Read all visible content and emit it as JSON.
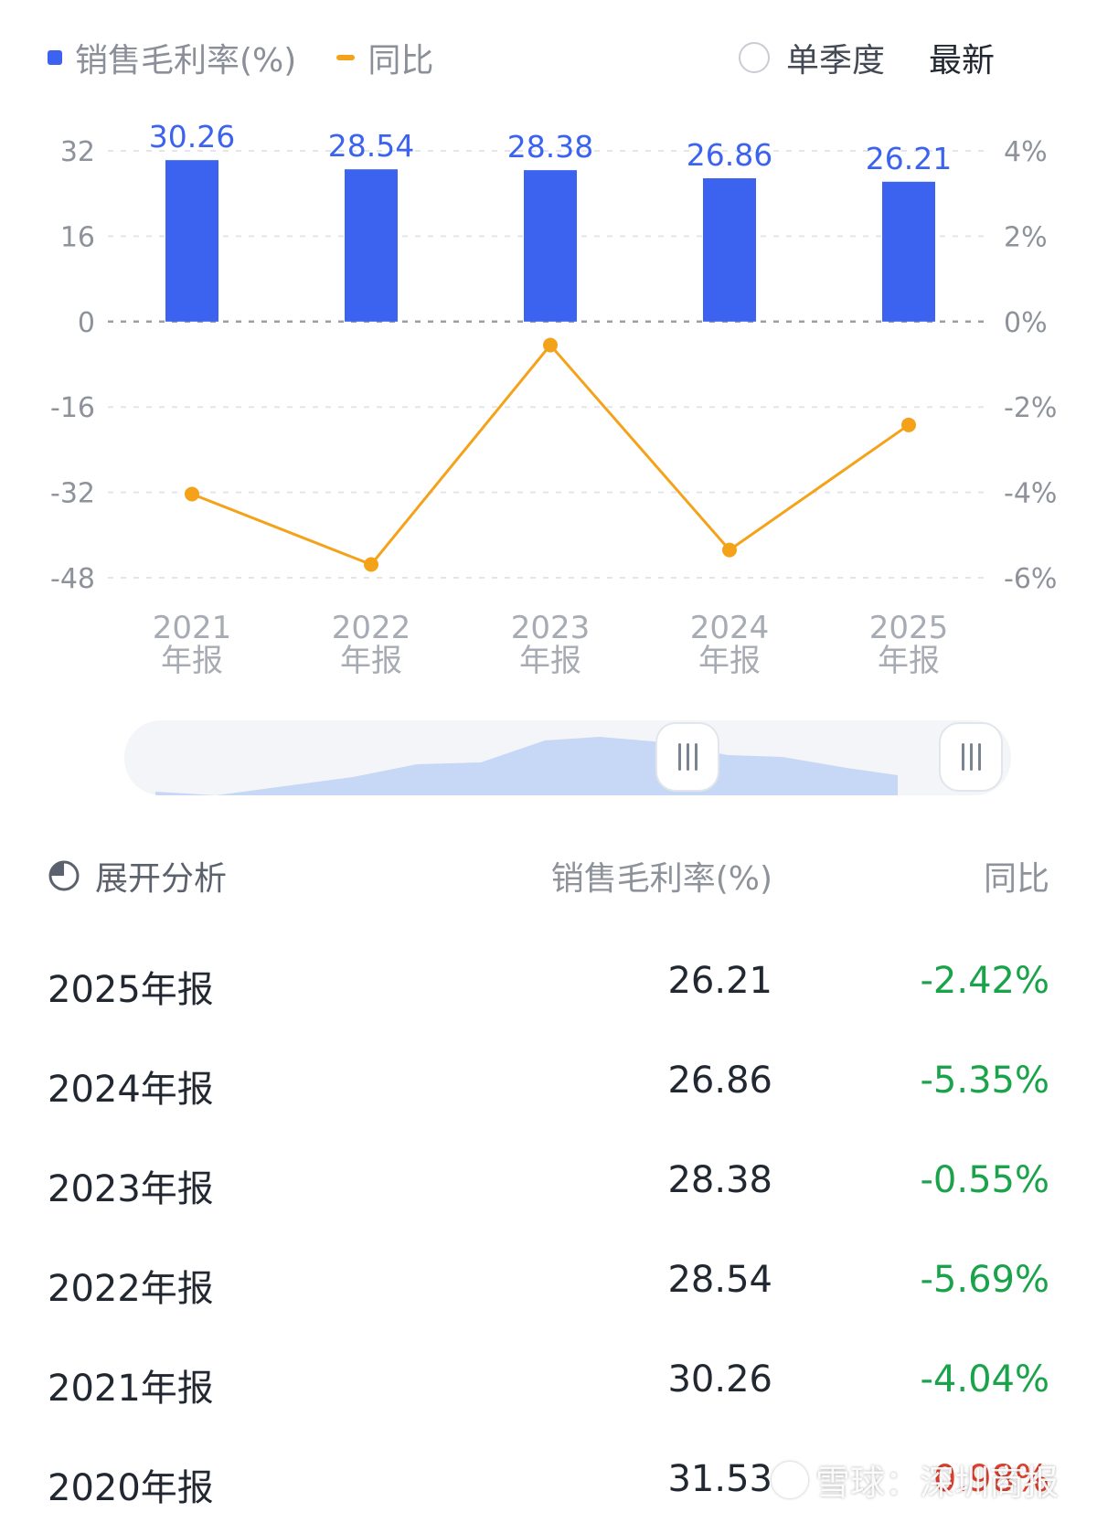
{
  "legend": {
    "bar_label": "销售毛利率(%)",
    "line_label": "同比"
  },
  "header": {
    "quarter_toggle": "单季度",
    "latest": "最新"
  },
  "colors": {
    "bar": "#3b63f0",
    "line": "#f5a21b",
    "negative": "#1aa34a",
    "positive": "#e0402f"
  },
  "chart_data": {
    "type": "bar+line",
    "categories": [
      "2021\n年报",
      "2022\n年报",
      "2023\n年报",
      "2024\n年报",
      "2025\n年报"
    ],
    "series": [
      {
        "name": "销售毛利率(%)",
        "type": "bar",
        "axis": "left",
        "values": [
          30.26,
          28.54,
          28.38,
          26.86,
          26.21
        ]
      },
      {
        "name": "同比",
        "type": "line",
        "axis": "right",
        "values": [
          -4.04,
          -5.69,
          -0.55,
          -5.35,
          -2.42
        ]
      }
    ],
    "left_axis": {
      "ticks": [
        32,
        16,
        0,
        -16,
        -32,
        -48
      ],
      "range": [
        -48,
        32
      ]
    },
    "right_axis": {
      "ticks": [
        "4%",
        "2%",
        "0%",
        "-2%",
        "-4%",
        "-6%"
      ],
      "range": [
        -6,
        4
      ]
    },
    "bar_labels": [
      "30.26",
      "28.54",
      "28.38",
      "26.86",
      "26.21"
    ]
  },
  "table": {
    "header": {
      "analysis": "展开分析",
      "metric": "销售毛利率(%)",
      "yoy": "同比"
    },
    "rows": [
      {
        "period": "2025年报",
        "value": "26.21",
        "yoy": "-2.42%",
        "dir": "down"
      },
      {
        "period": "2024年报",
        "value": "26.86",
        "yoy": "-5.35%",
        "dir": "down"
      },
      {
        "period": "2023年报",
        "value": "28.38",
        "yoy": "-0.55%",
        "dir": "down"
      },
      {
        "period": "2022年报",
        "value": "28.54",
        "yoy": "-5.69%",
        "dir": "down"
      },
      {
        "period": "2021年报",
        "value": "30.26",
        "yoy": "-4.04%",
        "dir": "down"
      },
      {
        "period": "2020年报",
        "value": "31.53",
        "yoy": "0.98%",
        "dir": "up"
      }
    ]
  },
  "watermark": "雪球：深圳商报"
}
